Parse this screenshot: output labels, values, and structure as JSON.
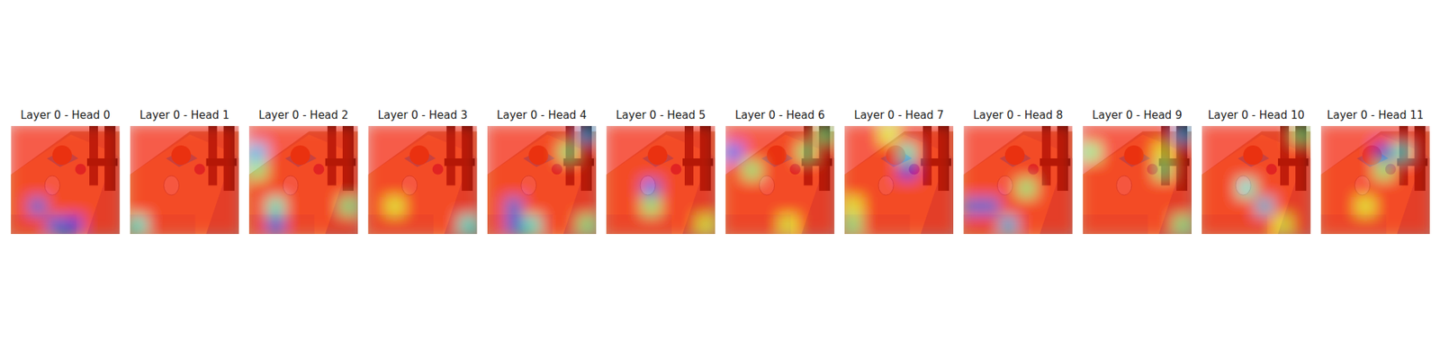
{
  "chart_data": [
    {
      "type": "heatmap",
      "title": "Layer 0 - Head 0",
      "color_range": [
        0,
        1
      ],
      "cells": [
        [
          0.85,
          0.85,
          0.85,
          0.85,
          0.85,
          0.85
        ],
        [
          0.85,
          0.85,
          0.85,
          0.85,
          0.85,
          0.85
        ],
        [
          0.85,
          0.85,
          0.85,
          0.85,
          0.85,
          0.85
        ],
        [
          0.85,
          0.85,
          0.85,
          0.85,
          0.85,
          0.85
        ],
        [
          0.85,
          0.2,
          0.85,
          0.85,
          0.85,
          0.85
        ],
        [
          0.85,
          0.85,
          0.2,
          0.15,
          0.85,
          0.85
        ]
      ]
    },
    {
      "type": "heatmap",
      "title": "Layer 0 - Head 1",
      "color_range": [
        0,
        1
      ],
      "cells": [
        [
          0.85,
          0.85,
          0.85,
          0.85,
          0.85,
          0.85
        ],
        [
          0.85,
          0.85,
          0.85,
          0.85,
          0.85,
          0.85
        ],
        [
          0.85,
          0.85,
          0.85,
          0.85,
          0.85,
          0.85
        ],
        [
          0.85,
          0.85,
          0.85,
          0.85,
          0.85,
          0.85
        ],
        [
          0.85,
          0.85,
          0.85,
          0.85,
          0.85,
          0.85
        ],
        [
          0.4,
          0.85,
          0.85,
          0.85,
          0.85,
          0.85
        ]
      ]
    },
    {
      "type": "heatmap",
      "title": "Layer 0 - Head 2",
      "color_range": [
        0,
        1
      ],
      "cells": [
        [
          0.85,
          0.85,
          0.85,
          0.85,
          0.85,
          0.85
        ],
        [
          0.3,
          0.85,
          0.85,
          0.85,
          0.85,
          0.85
        ],
        [
          0.5,
          0.85,
          0.85,
          0.85,
          0.85,
          0.85
        ],
        [
          0.85,
          0.85,
          0.85,
          0.85,
          0.85,
          0.85
        ],
        [
          0.85,
          0.4,
          0.85,
          0.85,
          0.85,
          0.5
        ],
        [
          0.85,
          0.2,
          0.85,
          0.85,
          0.85,
          0.85
        ]
      ]
    },
    {
      "type": "heatmap",
      "title": "Layer 0 - Head 3",
      "color_range": [
        0,
        1
      ],
      "cells": [
        [
          0.85,
          0.85,
          0.85,
          0.85,
          0.85,
          0.85
        ],
        [
          0.85,
          0.85,
          0.85,
          0.85,
          0.85,
          0.85
        ],
        [
          0.85,
          0.85,
          0.85,
          0.85,
          0.85,
          0.85
        ],
        [
          0.85,
          0.85,
          0.85,
          0.85,
          0.85,
          0.85
        ],
        [
          0.85,
          0.6,
          0.85,
          0.85,
          0.85,
          0.85
        ],
        [
          0.85,
          0.85,
          0.85,
          0.85,
          0.85,
          0.4
        ]
      ]
    },
    {
      "type": "heatmap",
      "title": "Layer 0 - Head 4",
      "color_range": [
        0,
        1
      ],
      "cells": [
        [
          0.85,
          0.85,
          0.85,
          0.85,
          0.85,
          0.3
        ],
        [
          0.85,
          0.85,
          0.85,
          0.85,
          0.5,
          0.85
        ],
        [
          0.85,
          0.85,
          0.85,
          0.85,
          0.85,
          0.85
        ],
        [
          0.85,
          0.85,
          0.85,
          0.85,
          0.85,
          0.85
        ],
        [
          0.85,
          0.2,
          0.85,
          0.85,
          0.85,
          0.85
        ],
        [
          0.85,
          0.2,
          0.4,
          0.85,
          0.85,
          0.5
        ]
      ]
    },
    {
      "type": "heatmap",
      "title": "Layer 0 - Head 5",
      "color_range": [
        0,
        1
      ],
      "cells": [
        [
          0.85,
          0.85,
          0.85,
          0.85,
          0.85,
          0.85
        ],
        [
          0.85,
          0.85,
          0.85,
          0.85,
          0.85,
          0.85
        ],
        [
          0.85,
          0.85,
          0.85,
          0.85,
          0.85,
          0.85
        ],
        [
          0.85,
          0.85,
          0.2,
          0.85,
          0.85,
          0.85
        ],
        [
          0.85,
          0.85,
          0.5,
          0.85,
          0.85,
          0.85
        ],
        [
          0.85,
          0.85,
          0.85,
          0.85,
          0.85,
          0.6
        ]
      ]
    },
    {
      "type": "heatmap",
      "title": "Layer 0 - Head 6",
      "color_range": [
        0,
        1
      ],
      "cells": [
        [
          0.85,
          0.85,
          0.85,
          0.85,
          0.85,
          0.5
        ],
        [
          0.2,
          0.85,
          0.85,
          0.85,
          0.5,
          0.85
        ],
        [
          0.85,
          0.5,
          0.85,
          0.85,
          0.85,
          0.85
        ],
        [
          0.85,
          0.85,
          0.85,
          0.85,
          0.85,
          0.85
        ],
        [
          0.85,
          0.85,
          0.85,
          0.85,
          0.85,
          0.85
        ],
        [
          0.85,
          0.85,
          0.85,
          0.6,
          0.85,
          0.85
        ]
      ]
    },
    {
      "type": "heatmap",
      "title": "Layer 0 - Head 7",
      "color_range": [
        0,
        1
      ],
      "cells": [
        [
          0.85,
          0.85,
          0.6,
          0.85,
          0.85,
          0.85
        ],
        [
          0.85,
          0.85,
          0.85,
          0.4,
          0.85,
          0.85
        ],
        [
          0.85,
          0.85,
          0.85,
          0.15,
          0.85,
          0.85
        ],
        [
          0.85,
          0.85,
          0.85,
          0.85,
          0.85,
          0.85
        ],
        [
          0.6,
          0.85,
          0.85,
          0.85,
          0.85,
          0.85
        ],
        [
          0.5,
          0.85,
          0.85,
          0.85,
          0.85,
          0.85
        ]
      ]
    },
    {
      "type": "heatmap",
      "title": "Layer 0 - Head 8",
      "color_range": [
        0,
        1
      ],
      "cells": [
        [
          0.85,
          0.85,
          0.85,
          0.85,
          0.85,
          0.85
        ],
        [
          0.85,
          0.85,
          0.85,
          0.85,
          0.85,
          0.85
        ],
        [
          0.85,
          0.85,
          0.85,
          0.85,
          0.85,
          0.85
        ],
        [
          0.85,
          0.85,
          0.85,
          0.5,
          0.85,
          0.85
        ],
        [
          0.2,
          0.2,
          0.85,
          0.85,
          0.85,
          0.85
        ],
        [
          0.85,
          0.85,
          0.3,
          0.85,
          0.85,
          0.85
        ]
      ]
    },
    {
      "type": "heatmap",
      "title": "Layer 0 - Head 9",
      "color_range": [
        0,
        1
      ],
      "cells": [
        [
          0.85,
          0.85,
          0.85,
          0.85,
          0.85,
          0.3
        ],
        [
          0.5,
          0.85,
          0.85,
          0.85,
          0.6,
          0.85
        ],
        [
          0.85,
          0.85,
          0.85,
          0.85,
          0.5,
          0.85
        ],
        [
          0.85,
          0.85,
          0.85,
          0.85,
          0.85,
          0.85
        ],
        [
          0.85,
          0.85,
          0.85,
          0.85,
          0.85,
          0.85
        ],
        [
          0.85,
          0.85,
          0.85,
          0.85,
          0.85,
          0.5
        ]
      ]
    },
    {
      "type": "heatmap",
      "title": "Layer 0 - Head 10",
      "color_range": [
        0,
        1
      ],
      "cells": [
        [
          0.85,
          0.85,
          0.85,
          0.85,
          0.85,
          0.5
        ],
        [
          0.85,
          0.85,
          0.85,
          0.85,
          0.85,
          0.85
        ],
        [
          0.85,
          0.85,
          0.85,
          0.85,
          0.85,
          0.85
        ],
        [
          0.85,
          0.85,
          0.4,
          0.85,
          0.85,
          0.85
        ],
        [
          0.85,
          0.85,
          0.85,
          0.3,
          0.85,
          0.85
        ],
        [
          0.85,
          0.85,
          0.85,
          0.85,
          0.6,
          0.85
        ]
      ]
    },
    {
      "type": "heatmap",
      "title": "Layer 0 - Head 11",
      "color_range": [
        0,
        1
      ],
      "cells": [
        [
          0.85,
          0.85,
          0.85,
          0.85,
          0.85,
          0.85
        ],
        [
          0.85,
          0.85,
          0.85,
          0.15,
          0.4,
          0.85
        ],
        [
          0.85,
          0.85,
          0.85,
          0.5,
          0.85,
          0.85
        ],
        [
          0.85,
          0.85,
          0.85,
          0.85,
          0.85,
          0.85
        ],
        [
          0.85,
          0.85,
          0.6,
          0.85,
          0.85,
          0.85
        ],
        [
          0.85,
          0.85,
          0.85,
          0.85,
          0.85,
          0.85
        ]
      ]
    }
  ]
}
